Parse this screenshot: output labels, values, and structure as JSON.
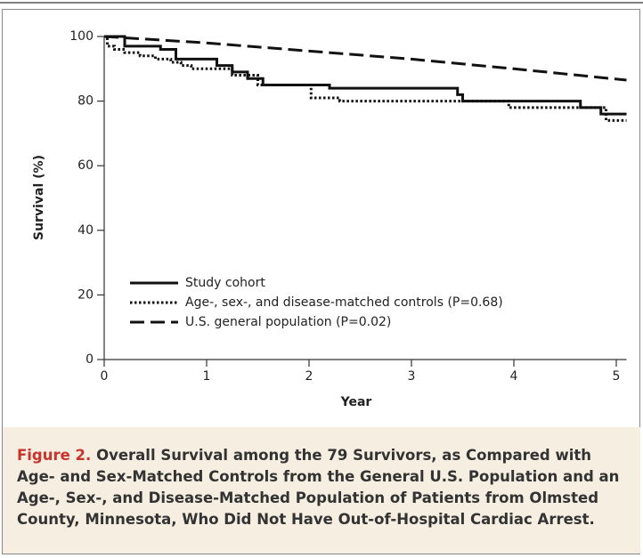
{
  "chart_data": {
    "type": "line",
    "x_label": "Year",
    "y_label": "Survival (%)",
    "xlim": [
      0,
      5.1
    ],
    "xticks": [
      0,
      1,
      2,
      3,
      4,
      5
    ],
    "ylim": [
      0,
      100
    ],
    "yticks": [
      0,
      20,
      40,
      60,
      80,
      100
    ],
    "series": [
      {
        "name": "Study cohort",
        "color": "#111111",
        "dash": "solid",
        "x": [
          0,
          0.2,
          0.2,
          0.55,
          0.55,
          0.7,
          0.7,
          1.1,
          1.1,
          1.25,
          1.25,
          1.4,
          1.4,
          1.55,
          1.55,
          2.2,
          2.2,
          3.45,
          3.45,
          3.5,
          3.5,
          4.65,
          4.65,
          4.85,
          4.85,
          5.1
        ],
        "values": [
          100,
          100,
          97,
          97,
          96,
          96,
          93,
          93,
          91,
          91,
          89,
          89,
          87,
          87,
          85,
          85,
          84,
          84,
          82,
          82,
          80,
          80,
          78,
          78,
          76,
          76
        ]
      },
      {
        "name": "Age-, sex-, and disease-matched controls (P=0.68)",
        "color": "#111111",
        "dash": "dotted",
        "x": [
          0,
          0.03,
          0.03,
          0.1,
          0.1,
          0.2,
          0.2,
          0.35,
          0.35,
          0.5,
          0.5,
          0.65,
          0.65,
          0.75,
          0.75,
          0.85,
          0.85,
          1.25,
          1.25,
          1.5,
          1.5,
          2.02,
          2.02,
          2.3,
          2.3,
          3.95,
          3.95,
          4.9,
          4.9,
          5.1
        ],
        "values": [
          100,
          100,
          97,
          97,
          96,
          96,
          95,
          95,
          94,
          94,
          93,
          93,
          92,
          92,
          91,
          91,
          90,
          90,
          88,
          88,
          85,
          85,
          81,
          81,
          80,
          80,
          78,
          78,
          74,
          74
        ]
      },
      {
        "name": "U.S. general population (P=0.02)",
        "color": "#111111",
        "dash": "dashed",
        "x": [
          0,
          1,
          2,
          3,
          4,
          5.1
        ],
        "values": [
          100,
          98,
          95.5,
          93,
          90,
          86.5
        ]
      }
    ],
    "caption_label": "Figure 2.",
    "caption": "Overall Survival among the 79 Survivors, as Compared with Age- and Sex-Matched Controls from the General U.S. Population and an Age-, Sex-, and Disease-Matched Population of Patients from Olmsted County, Minnesota, Who Did Not Have Out-of-Hospital Cardiac Arrest."
  }
}
